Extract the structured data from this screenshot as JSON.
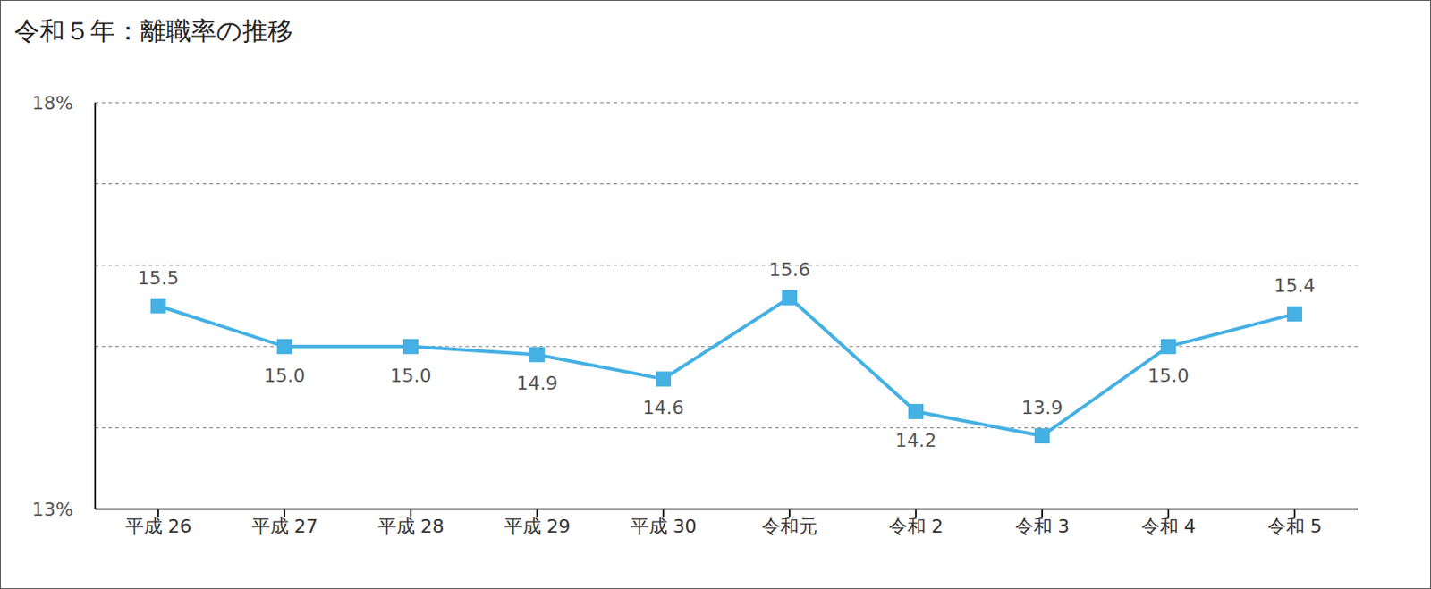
{
  "chart_data": {
    "type": "line",
    "title": "令和５年：離職率の推移",
    "categories": [
      "平成 26",
      "平成 27",
      "平成 28",
      "平成 29",
      "平成 30",
      "令和元",
      "令和 2",
      "令和 3",
      "令和 4",
      "令和 5"
    ],
    "values": [
      15.5,
      15.0,
      15.0,
      14.9,
      14.6,
      15.6,
      14.2,
      13.9,
      15.0,
      15.4
    ],
    "value_labels": [
      "15.5",
      "15.0",
      "15.0",
      "14.9",
      "14.6",
      "15.6",
      "14.2",
      "13.9",
      "15.0",
      "15.4"
    ],
    "color": "#45b0e3",
    "marker": "square",
    "ylim": [
      13,
      18
    ],
    "yticks": [
      {
        "value": 13,
        "label": "13%"
      },
      {
        "value": 14,
        "label": null
      },
      {
        "value": 15,
        "label": null
      },
      {
        "value": 16,
        "label": null
      },
      {
        "value": 17,
        "label": null
      },
      {
        "value": 18,
        "label": "18%"
      }
    ],
    "grid": true,
    "data_labels": true
  }
}
